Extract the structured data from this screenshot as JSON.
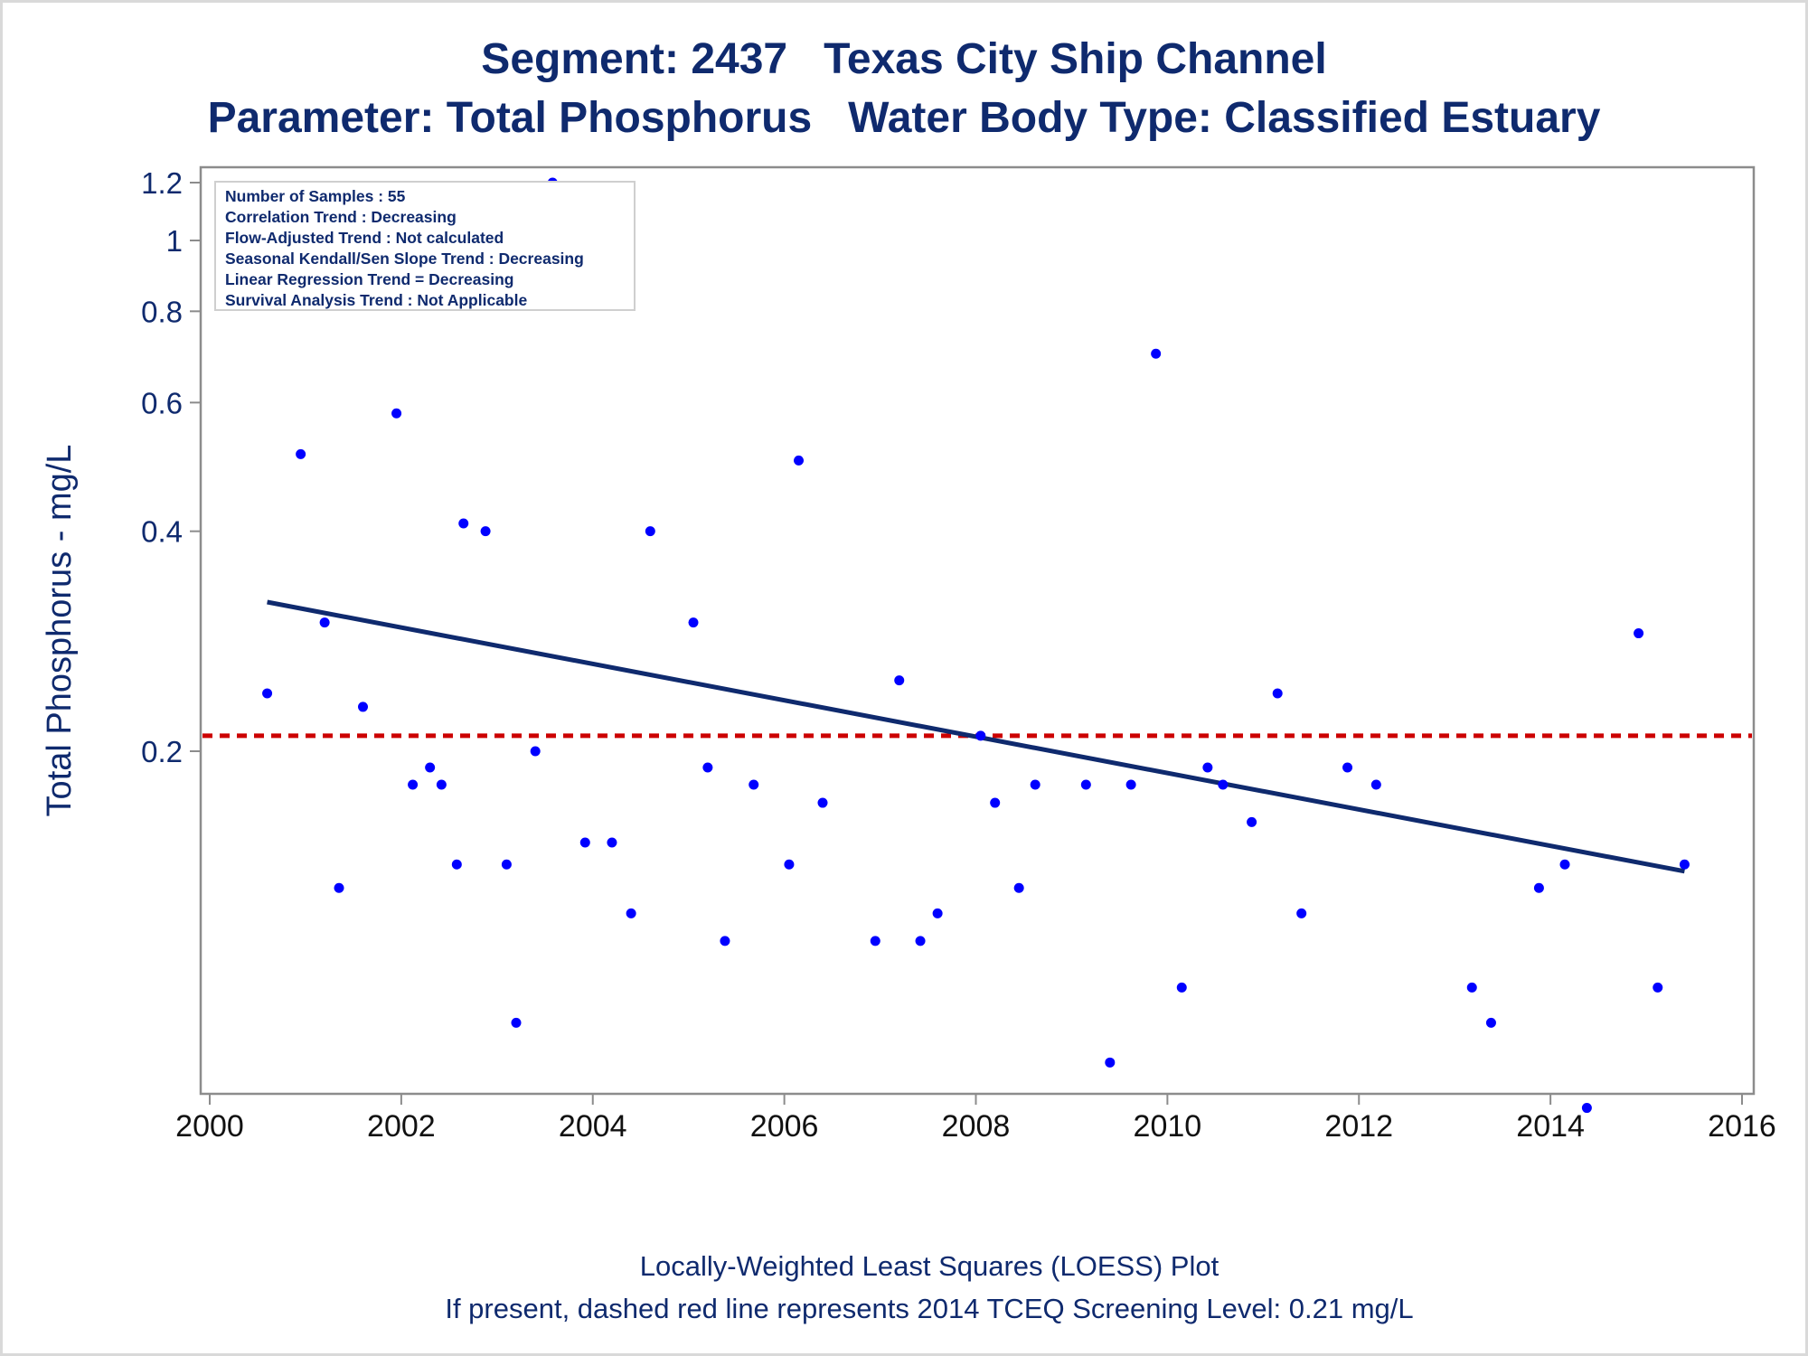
{
  "title": {
    "line1": "Segment: 2437   Texas City Ship Channel",
    "line2": "Parameter: Total Phosphorus   Water Body Type: Classified Estuary"
  },
  "footnotes": {
    "line1": "Locally-Weighted Least Squares (LOESS) Plot",
    "line2": "If present, dashed red line represents 2014 TCEQ Screening Level: 0.21 mg/L"
  },
  "legend": [
    "Number of Samples : 55",
    "Correlation Trend : Decreasing",
    "Flow-Adjusted Trend : Not calculated",
    "Seasonal Kendall/Sen Slope Trend : Decreasing",
    "Linear Regression Trend = Decreasing",
    "Survival Analysis Trend : Not Applicable"
  ],
  "colors": {
    "text": "#0f2a6e",
    "points": "#0000ff",
    "trend_line": "#0f2a6e",
    "screening_line": "#cc0000",
    "axis": "#8c8c8c"
  },
  "chart_data": {
    "type": "scatter",
    "ylabel": "Total Phosphorus - mg/L",
    "xlabel": "",
    "yscale": "log",
    "xlim": [
      2000,
      2016
    ],
    "ylim": [
      0.066,
      1.25
    ],
    "xticks": [
      2000,
      2002,
      2004,
      2006,
      2008,
      2010,
      2012,
      2014,
      2016
    ],
    "yticks": [
      0.2,
      0.4,
      0.6,
      0.8,
      1,
      1.2
    ],
    "ytick_labels": [
      "0.2",
      "0.4",
      "0.6",
      "0.8",
      "1",
      "1.2"
    ],
    "points": [
      [
        2000.6,
        0.24
      ],
      [
        2000.95,
        0.51
      ],
      [
        2001.2,
        0.3
      ],
      [
        2001.35,
        0.13
      ],
      [
        2001.6,
        0.23
      ],
      [
        2001.95,
        0.58
      ],
      [
        2002.12,
        0.18
      ],
      [
        2002.3,
        0.19
      ],
      [
        2002.42,
        0.18
      ],
      [
        2002.58,
        0.14
      ],
      [
        2002.65,
        0.41
      ],
      [
        2002.88,
        0.4
      ],
      [
        2003.1,
        0.14
      ],
      [
        2003.2,
        0.085
      ],
      [
        2003.4,
        0.2
      ],
      [
        2003.58,
        1.2
      ],
      [
        2003.92,
        0.15
      ],
      [
        2004.2,
        0.15
      ],
      [
        2004.4,
        0.12
      ],
      [
        2004.6,
        0.4
      ],
      [
        2005.05,
        0.3
      ],
      [
        2005.2,
        0.19
      ],
      [
        2005.38,
        0.11
      ],
      [
        2005.68,
        0.18
      ],
      [
        2006.05,
        0.14
      ],
      [
        2006.15,
        0.5
      ],
      [
        2006.4,
        0.17
      ],
      [
        2006.95,
        0.11
      ],
      [
        2007.2,
        0.25
      ],
      [
        2007.42,
        0.11
      ],
      [
        2007.6,
        0.12
      ],
      [
        2008.05,
        0.21
      ],
      [
        2008.2,
        0.17
      ],
      [
        2008.45,
        0.13
      ],
      [
        2008.62,
        0.18
      ],
      [
        2009.15,
        0.18
      ],
      [
        2009.4,
        0.075
      ],
      [
        2009.62,
        0.18
      ],
      [
        2009.88,
        0.7
      ],
      [
        2010.15,
        0.095
      ],
      [
        2010.42,
        0.19
      ],
      [
        2010.58,
        0.18
      ],
      [
        2010.88,
        0.16
      ],
      [
        2011.15,
        0.24
      ],
      [
        2011.4,
        0.12
      ],
      [
        2011.88,
        0.19
      ],
      [
        2012.18,
        0.18
      ],
      [
        2013.18,
        0.095
      ],
      [
        2013.38,
        0.085
      ],
      [
        2013.88,
        0.13
      ],
      [
        2014.15,
        0.14
      ],
      [
        2014.38,
        0.065
      ],
      [
        2014.92,
        0.29
      ],
      [
        2015.12,
        0.095
      ],
      [
        2015.4,
        0.14
      ]
    ],
    "trend_line": {
      "name": "LOESS",
      "x": [
        2000.6,
        2015.4
      ],
      "y": [
        0.32,
        0.137
      ]
    },
    "screening_level": 0.21,
    "grid": false,
    "legend_position": "top-left"
  }
}
